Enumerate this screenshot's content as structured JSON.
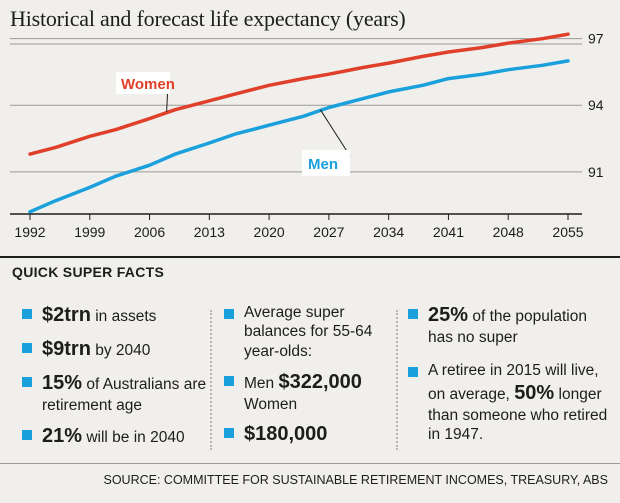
{
  "chart_data": {
    "type": "line",
    "title": "Historical and forecast life expectancy (years)",
    "xlabel": "",
    "ylabel": "",
    "x_ticks": [
      "1992",
      "1999",
      "2006",
      "2013",
      "2020",
      "2027",
      "2034",
      "2041",
      "2048",
      "2055"
    ],
    "y_ticks": [
      91,
      94,
      97
    ],
    "xlim": [
      1992,
      2055
    ],
    "ylim": [
      89.1,
      97.3
    ],
    "grid": true,
    "series": [
      {
        "name": "Women",
        "color": "#e0402a",
        "x": [
          1992,
          1995,
          1999,
          2002,
          2006,
          2009,
          2013,
          2016,
          2020,
          2024,
          2027,
          2031,
          2034,
          2038,
          2041,
          2045,
          2048,
          2052,
          2055
        ],
        "y": [
          91.8,
          92.1,
          92.6,
          92.9,
          93.4,
          93.8,
          94.2,
          94.5,
          94.9,
          95.2,
          95.4,
          95.7,
          95.9,
          96.2,
          96.4,
          96.6,
          96.8,
          97.0,
          97.2
        ]
      },
      {
        "name": "Men",
        "color": "#1aa0dc",
        "x": [
          1992,
          1995,
          1999,
          2002,
          2006,
          2009,
          2013,
          2016,
          2020,
          2024,
          2027,
          2031,
          2034,
          2038,
          2041,
          2045,
          2048,
          2052,
          2055
        ],
        "y": [
          89.2,
          89.7,
          90.3,
          90.8,
          91.3,
          91.8,
          92.3,
          92.7,
          93.1,
          93.5,
          93.9,
          94.3,
          94.6,
          94.9,
          95.2,
          95.4,
          95.6,
          95.8,
          96.0
        ]
      }
    ]
  },
  "facts": {
    "heading": "QUICK SUPER FACTS",
    "col1": [
      {
        "big": "$2trn",
        "text": " in assets"
      },
      {
        "big": "$9trn",
        "text": " by 2040"
      },
      {
        "big": "15%",
        "text": " of Australians are retirement age"
      },
      {
        "big": "21%",
        "text": " will be in 2040"
      }
    ],
    "col2": {
      "intro": "Average super balances for 55-64 year-olds:",
      "men_label": "Men ",
      "men_value": "$322,000",
      "women_label": "Women",
      "women_value": "$180,000"
    },
    "col3": {
      "item1_big": "25%",
      "item1_text": " of the population has no super",
      "item2_pre": "A retiree in 2015 will live, on average, ",
      "item2_big": "50%",
      "item2_post": " longer than someone who retired in 1947."
    }
  },
  "source": "SOURCE: COMMITTEE FOR SUSTAINABLE RETIREMENT INCOMES, TREASURY, ABS"
}
